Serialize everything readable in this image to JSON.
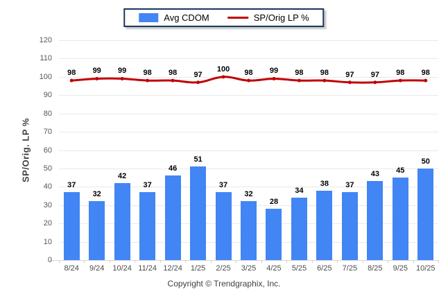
{
  "chart_data": {
    "type": "bar",
    "categories": [
      "8/24",
      "9/24",
      "10/24",
      "11/24",
      "12/24",
      "1/25",
      "2/25",
      "3/25",
      "4/25",
      "5/25",
      "6/25",
      "7/25",
      "8/25",
      "9/25",
      "10/25"
    ],
    "series": [
      {
        "name": "Avg CDOM",
        "type": "bar",
        "color": "#4285F4",
        "values": [
          37,
          32,
          42,
          37,
          46,
          51,
          37,
          32,
          28,
          34,
          38,
          37,
          43,
          45,
          50
        ]
      },
      {
        "name": "SP/Orig LP %",
        "type": "line",
        "color": "#C00000",
        "values": [
          98,
          99,
          99,
          98,
          98,
          97,
          100,
          98,
          99,
          98,
          98,
          97,
          97,
          98,
          98
        ]
      }
    ],
    "title": "",
    "xlabel": "",
    "ylabel": "SP/Orig. LP %",
    "ylim": [
      0,
      120
    ],
    "ytick_step": 10,
    "grid": true,
    "legend_position": "top-center"
  },
  "legend": {
    "items": [
      {
        "label": "Avg CDOM",
        "marker": "swatch",
        "color": "#4285F4"
      },
      {
        "label": "SP/Orig LP %",
        "marker": "line",
        "color": "#C00000"
      }
    ]
  },
  "footer": {
    "copyright": "Copyright © Trendgraphix, Inc."
  }
}
